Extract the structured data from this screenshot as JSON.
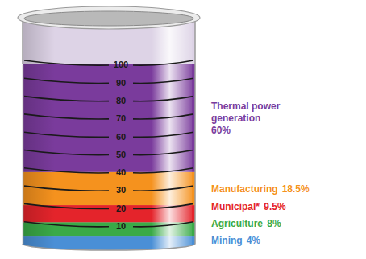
{
  "chart_data": {
    "type": "bar",
    "stacked": true,
    "categories": [
      null
    ],
    "series": [
      {
        "name": "Mining",
        "color": "#4a8fd6",
        "values": [
          4
        ],
        "value_labels": [
          "4%"
        ]
      },
      {
        "name": "Agriculture",
        "color": "#3aaa48",
        "values": [
          8
        ],
        "value_labels": [
          "8%"
        ]
      },
      {
        "name": "Municipal*",
        "color": "#e4242b",
        "values": [
          9.5
        ],
        "value_labels": [
          "9.5%"
        ]
      },
      {
        "name": "Manufacturing",
        "color": "#f5921e",
        "values": [
          18.5
        ],
        "value_labels": [
          "18.5%"
        ]
      },
      {
        "name": "Thermal power generation",
        "color": "#7a3b9c",
        "values": [
          60
        ],
        "value_labels": [
          "60%"
        ]
      }
    ],
    "ylim": [
      0,
      100
    ],
    "yticks": [
      10,
      20,
      30,
      40,
      50,
      60,
      70,
      80,
      90,
      100
    ],
    "tick_labels": "y",
    "data_labels": true,
    "legend": "right",
    "grid": true
  }
}
